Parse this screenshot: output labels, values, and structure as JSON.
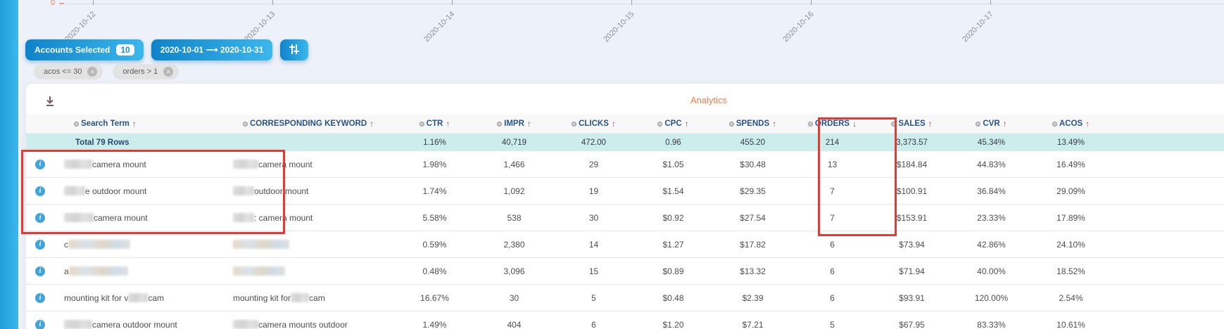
{
  "chart": {
    "y_zero_label": "0",
    "x_labels": [
      "2020-10-12",
      "2020-10-13",
      "2020-10-14",
      "2020-10-15",
      "2020-10-16",
      "2020-10-17"
    ]
  },
  "toolbar": {
    "accounts_label": "Accounts Selected",
    "accounts_count": "10",
    "date_range": "2020-10-01 ⟶ 2020-10-31"
  },
  "filters": {
    "close_glyph": "×",
    "chips": [
      {
        "label": "acos <= 30"
      },
      {
        "label": "orders > 1"
      }
    ]
  },
  "card": {
    "analytics_title": "Analytics",
    "table": {
      "sort_arrows": {
        "asc": "↑",
        "desc": "↓"
      },
      "columns": [
        {
          "key": "search_term",
          "label": "Search Term",
          "sort": "asc"
        },
        {
          "key": "keyword",
          "label": "CORRESPONDING KEYWORD",
          "sort": "asc"
        },
        {
          "key": "ctr",
          "label": "CTR",
          "sort": "asc"
        },
        {
          "key": "impr",
          "label": "IMPR",
          "sort": "asc"
        },
        {
          "key": "clicks",
          "label": "CLICKS",
          "sort": "asc"
        },
        {
          "key": "cpc",
          "label": "CPC",
          "sort": "asc"
        },
        {
          "key": "spends",
          "label": "SPENDS",
          "sort": "asc"
        },
        {
          "key": "orders",
          "label": "ORDERS",
          "sort": "desc"
        },
        {
          "key": "sales",
          "label": "SALES",
          "sort": "asc"
        },
        {
          "key": "cvr",
          "label": "CVR",
          "sort": "asc"
        },
        {
          "key": "acos",
          "label": "ACOS",
          "sort": "asc"
        }
      ],
      "total_row": {
        "label": "Total 79 Rows",
        "ctr": "1.16%",
        "impr": "40,719",
        "clicks": "472.00",
        "cpc": "0.96",
        "spends": "455.20",
        "orders": "214",
        "sales": "3,373.57",
        "cvr": "45.34%",
        "acos": "13.49%"
      },
      "rows": [
        {
          "search_term": [
            {
              "b": 40
            },
            {
              "t": " camera mount"
            }
          ],
          "keyword": [
            {
              "b": 36
            },
            {
              "t": " camera mount"
            }
          ],
          "ctr": "1.98%",
          "impr": "1,466",
          "clicks": "29",
          "cpc": "$1.05",
          "spends": "$30.48",
          "orders": "13",
          "sales": "$184.84",
          "cvr": "44.83%",
          "acos": "16.49%"
        },
        {
          "search_term": [
            {
              "b": 30
            },
            {
              "t": "e outdoor mount"
            }
          ],
          "keyword": [
            {
              "b": 30
            },
            {
              "t": " outdoor mount"
            }
          ],
          "ctr": "1.74%",
          "impr": "1,092",
          "clicks": "19",
          "cpc": "$1.54",
          "spends": "$29.35",
          "orders": "7",
          "sales": "$100.91",
          "cvr": "36.84%",
          "acos": "29.09%"
        },
        {
          "search_term": [
            {
              "b": 42
            },
            {
              "t": " camera mount"
            }
          ],
          "keyword": [
            {
              "b": 30
            },
            {
              "t": ": camera mount"
            }
          ],
          "ctr": "5.58%",
          "impr": "538",
          "clicks": "30",
          "cpc": "$0.92",
          "spends": "$27.54",
          "orders": "7",
          "sales": "$153.91",
          "cvr": "23.33%",
          "acos": "17.89%"
        },
        {
          "search_term": [
            {
              "t": "c"
            },
            {
              "b": 88,
              "c": "tint"
            }
          ],
          "keyword": [
            {
              "b": 80,
              "c": "tint"
            }
          ],
          "ctr": "0.59%",
          "impr": "2,380",
          "clicks": "14",
          "cpc": "$1.27",
          "spends": "$17.82",
          "orders": "6",
          "sales": "$73.94",
          "cvr": "42.86%",
          "acos": "24.10%"
        },
        {
          "search_term": [
            {
              "t": "a"
            },
            {
              "b": 84,
              "c": "tint"
            }
          ],
          "keyword": [
            {
              "b": 74,
              "c": "tint"
            }
          ],
          "ctr": "0.48%",
          "impr": "3,096",
          "clicks": "15",
          "cpc": "$0.89",
          "spends": "$13.32",
          "orders": "6",
          "sales": "$71.94",
          "cvr": "40.00%",
          "acos": "18.52%"
        },
        {
          "search_term": [
            {
              "t": "mounting kit for v"
            },
            {
              "b": 28
            },
            {
              "t": " cam"
            }
          ],
          "keyword": [
            {
              "t": "mounting kit for "
            },
            {
              "b": 26
            },
            {
              "t": " cam"
            }
          ],
          "ctr": "16.67%",
          "impr": "30",
          "clicks": "5",
          "cpc": "$0.48",
          "spends": "$2.39",
          "orders": "6",
          "sales": "$93.91",
          "cvr": "120.00%",
          "acos": "2.54%"
        },
        {
          "search_term": [
            {
              "b": 40
            },
            {
              "t": " camera outdoor mount"
            }
          ],
          "keyword": [
            {
              "b": 36
            },
            {
              "t": " camera mounts outdoor"
            }
          ],
          "ctr": "1.49%",
          "impr": "404",
          "clicks": "6",
          "cpc": "$1.20",
          "spends": "$7.21",
          "orders": "5",
          "sales": "$67.95",
          "cvr": "83.33%",
          "acos": "10.61%"
        }
      ]
    }
  },
  "colors": {
    "accent_blue": "#2ba6e0",
    "header_navy": "#26538f",
    "sort_arrow": "#8e4a68",
    "analytics_orange": "#f07c48",
    "total_row_teal": "#cdecec",
    "annotation_red": "#e53935"
  }
}
